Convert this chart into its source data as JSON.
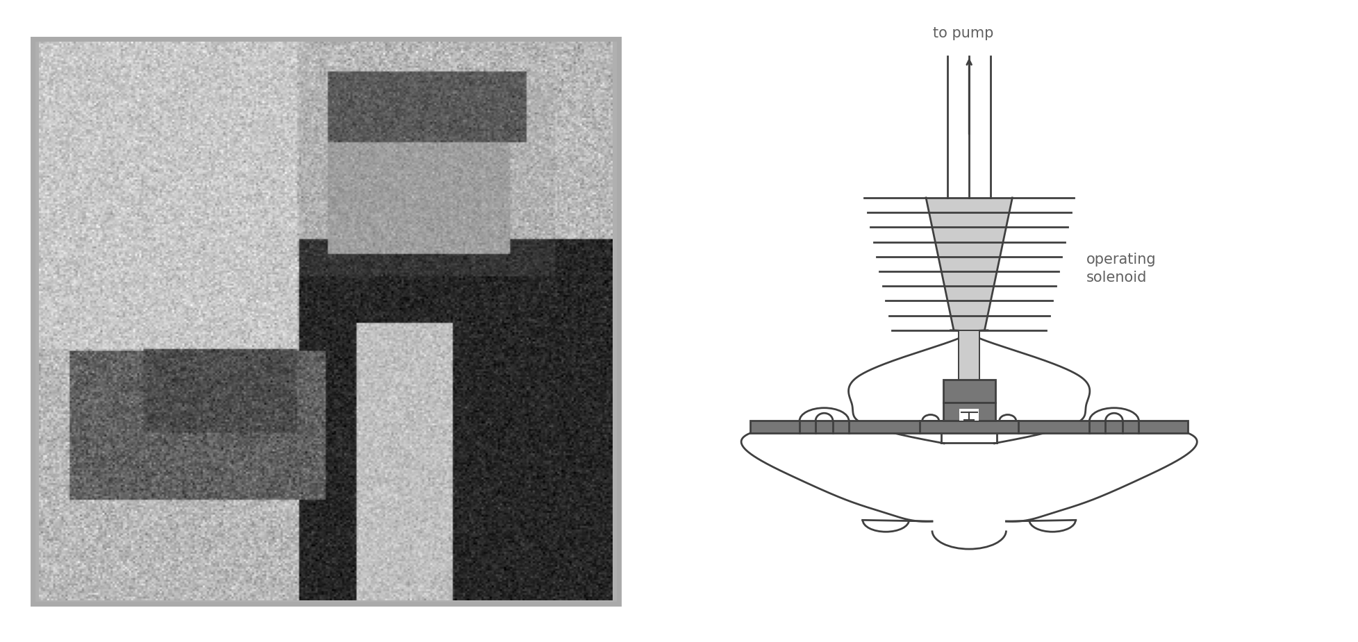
{
  "bg_color": "#ffffff",
  "line_color": "#404040",
  "fill_light": "#cccccc",
  "fill_mid": "#aaaaaa",
  "fill_dark": "#777777",
  "label_to_pump": "to pump",
  "label_solenoid": "operating\nsolenoid",
  "text_color": "#606060",
  "font_size_label": 15,
  "photo_border": "#aaaaaa",
  "photo_bg": "#b8b8b8"
}
